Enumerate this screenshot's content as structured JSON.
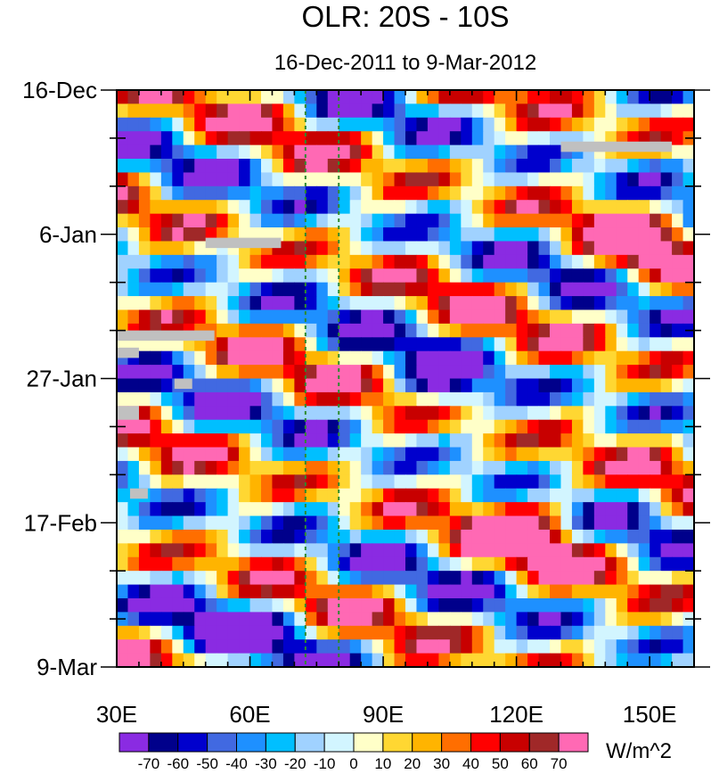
{
  "chart_data": {
    "type": "heatmap",
    "title": "OLR: 20S - 10S",
    "subtitle": "16-Dec-2011 to 9-Mar-2012",
    "xlabel": "",
    "ylabel": "",
    "x_unit": "degrees longitude East",
    "xlim": [
      30,
      160
    ],
    "x_ticks": [
      30,
      60,
      90,
      120,
      150
    ],
    "x_tick_labels": [
      "30E",
      "60E",
      "90E",
      "120E",
      "150E"
    ],
    "y_ticks": [
      "16-Dec",
      "6-Jan",
      "27-Jan",
      "17-Feb",
      "9-Mar"
    ],
    "y_range": [
      "16-Dec-2011",
      "9-Mar-2012"
    ],
    "y_direction": "time increases downward",
    "reference_lines": [
      {
        "x": 72.5,
        "style": "dashed",
        "color": "#2e8b2e"
      },
      {
        "x": 80,
        "style": "dashed",
        "color": "#2e8b2e"
      }
    ],
    "colorbar": {
      "unit_label": "W/m^2",
      "levels": [
        -70,
        -60,
        -50,
        -40,
        -30,
        -20,
        -10,
        0,
        10,
        20,
        30,
        40,
        50,
        60,
        70
      ],
      "level_labels": [
        "-70",
        "-60",
        "-50",
        "-40",
        "-30",
        "-20",
        "-10",
        "0",
        "10",
        "20",
        "30",
        "40",
        "50",
        "60",
        "70"
      ],
      "colors": [
        "#8a2be2",
        "#00008b",
        "#0000cd",
        "#4169e1",
        "#1e90ff",
        "#00bfff",
        "#a0d2ff",
        "#d2f5ff",
        "#ffffc8",
        "#ffd732",
        "#ffb400",
        "#ff6e00",
        "#ff0000",
        "#c80000",
        "#a02828",
        "#ff69b4"
      ]
    },
    "missing_color": "#c0c0c0",
    "grid": false,
    "legend": "colorbar at bottom"
  }
}
